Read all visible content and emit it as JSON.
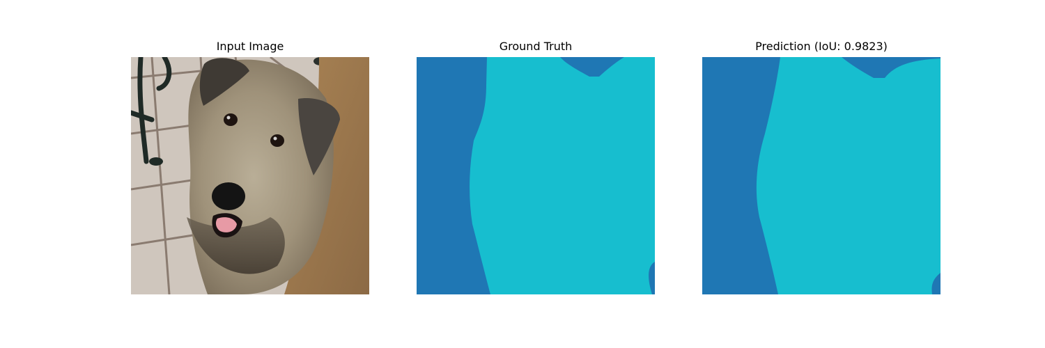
{
  "panels": [
    {
      "id": "input",
      "title": "Input Image",
      "type": "photo"
    },
    {
      "id": "ground-truth",
      "title": "Ground Truth",
      "type": "mask"
    },
    {
      "id": "prediction",
      "title": "Prediction (IoU: 0.9823)",
      "type": "mask"
    }
  ],
  "prediction_iou": 0.9823,
  "mask_colors": {
    "background": "#1f77b4",
    "foreground": "#17becf"
  },
  "photo_subject": "shaggy wheaten terrier dog on tiled floor"
}
